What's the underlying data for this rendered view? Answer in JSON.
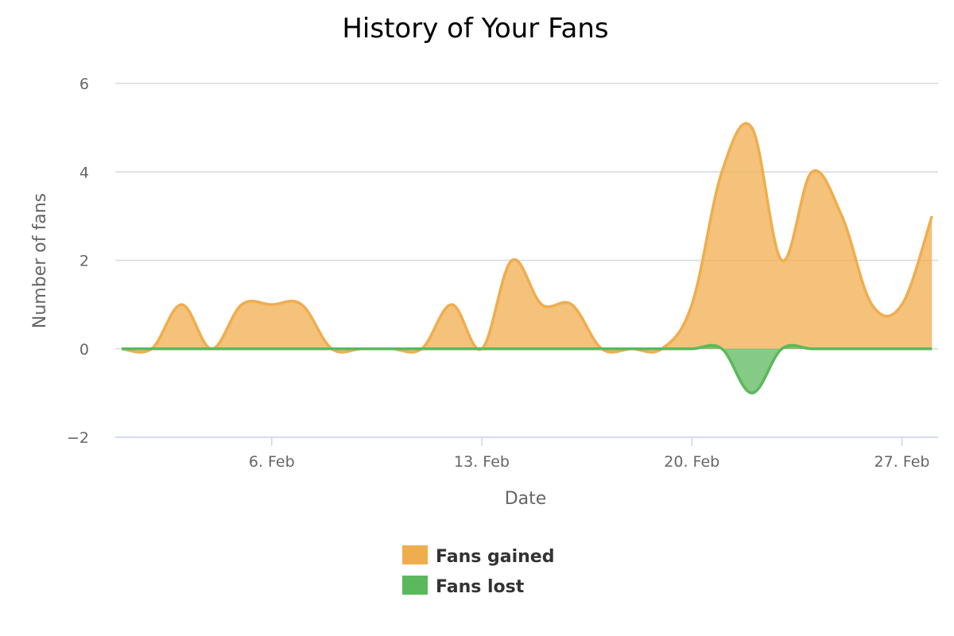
{
  "chart_data": {
    "type": "area",
    "title": "History of Your Fans",
    "xlabel": "Date",
    "ylabel": "Number of fans",
    "x": [
      "2/1",
      "2/2",
      "2/3",
      "2/4",
      "2/5",
      "2/6",
      "2/7",
      "2/8",
      "2/9",
      "2/10",
      "2/11",
      "2/12",
      "2/13",
      "2/14",
      "2/15",
      "2/16",
      "2/17",
      "2/18",
      "2/19",
      "2/20",
      "2/21",
      "2/22",
      "2/23",
      "2/24",
      "2/25",
      "2/26",
      "2/27",
      "2/28"
    ],
    "xticks": [
      {
        "label": "6. Feb",
        "index": 5
      },
      {
        "label": "13. Feb",
        "index": 12
      },
      {
        "label": "20. Feb",
        "index": 19
      },
      {
        "label": "27. Feb",
        "index": 26
      }
    ],
    "ylim": [
      -2,
      6
    ],
    "yticks": [
      {
        "value": 6,
        "label": "6"
      },
      {
        "value": 4,
        "label": "4"
      },
      {
        "value": 2,
        "label": "2"
      },
      {
        "value": 0,
        "label": "0"
      },
      {
        "value": -2,
        "label": "−2"
      }
    ],
    "grid": true,
    "legend_position": "bottom",
    "series": [
      {
        "name": "Fans gained",
        "color": "#f0ad4e",
        "values": [
          0,
          0,
          1,
          0,
          1,
          1,
          1,
          0,
          0,
          0,
          0,
          1,
          0,
          2,
          1,
          1,
          0,
          0,
          0,
          1,
          4,
          5,
          2,
          4,
          3,
          1,
          1,
          3
        ]
      },
      {
        "name": "Fans lost",
        "color": "#5cb85c",
        "values": [
          0,
          0,
          0,
          0,
          0,
          0,
          0,
          0,
          0,
          0,
          0,
          0,
          0,
          0,
          0,
          0,
          0,
          0,
          0,
          0,
          0,
          -1,
          0,
          0,
          0,
          0,
          0,
          0
        ]
      }
    ]
  }
}
